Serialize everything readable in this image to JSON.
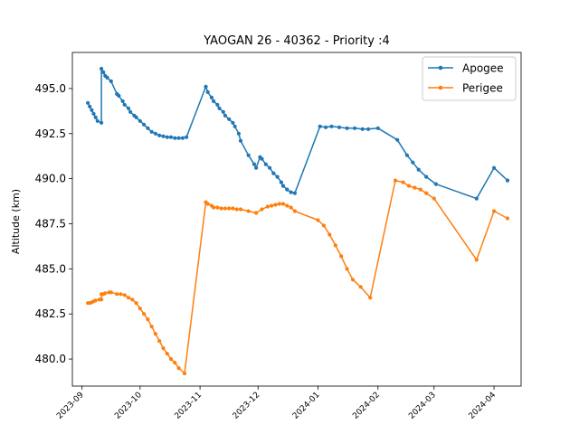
{
  "chart_data": {
    "type": "line",
    "title": "YAOGAN 26 - 40362 - Priority :4",
    "xlabel": "",
    "ylabel": "Altitude (km)",
    "xlim": [
      "2023-08-27",
      "2024-04-15"
    ],
    "ylim": [
      478.5,
      497.0
    ],
    "x_ticks": [
      "2023-09",
      "2023-10",
      "2023-11",
      "2023-12",
      "2024-01",
      "2024-02",
      "2024-03",
      "2024-04"
    ],
    "y_ticks": [
      480.0,
      482.5,
      485.0,
      487.5,
      490.0,
      492.5,
      495.0
    ],
    "y_tick_labels": [
      "480.0",
      "482.5",
      "485.0",
      "487.5",
      "490.0",
      "492.5",
      "495.0"
    ],
    "legend_position": "top-right",
    "grid": false,
    "series": [
      {
        "name": "Apogee",
        "color": "#1f77b4",
        "points": [
          [
            "2023-09-04",
            494.2
          ],
          [
            "2023-09-05",
            494.0
          ],
          [
            "2023-09-06",
            493.8
          ],
          [
            "2023-09-07",
            493.6
          ],
          [
            "2023-09-08",
            493.4
          ],
          [
            "2023-09-09",
            493.2
          ],
          [
            "2023-09-11",
            493.1
          ],
          [
            "2023-09-11",
            496.1
          ],
          [
            "2023-09-12",
            495.9
          ],
          [
            "2023-09-13",
            495.7
          ],
          [
            "2023-09-14",
            495.6
          ],
          [
            "2023-09-16",
            495.4
          ],
          [
            "2023-09-19",
            494.7
          ],
          [
            "2023-09-20",
            494.6
          ],
          [
            "2023-09-22",
            494.3
          ],
          [
            "2023-09-23",
            494.1
          ],
          [
            "2023-09-25",
            493.9
          ],
          [
            "2023-09-26",
            493.7
          ],
          [
            "2023-09-28",
            493.5
          ],
          [
            "2023-09-29",
            493.4
          ],
          [
            "2023-10-01",
            493.2
          ],
          [
            "2023-10-03",
            493.0
          ],
          [
            "2023-10-05",
            492.8
          ],
          [
            "2023-10-07",
            492.6
          ],
          [
            "2023-10-09",
            492.5
          ],
          [
            "2023-10-11",
            492.4
          ],
          [
            "2023-10-13",
            492.35
          ],
          [
            "2023-10-15",
            492.3
          ],
          [
            "2023-10-17",
            492.3
          ],
          [
            "2023-10-19",
            492.25
          ],
          [
            "2023-10-21",
            492.25
          ],
          [
            "2023-10-23",
            492.25
          ],
          [
            "2023-10-25",
            492.3
          ],
          [
            "2023-11-04",
            495.1
          ],
          [
            "2023-11-05",
            494.8
          ],
          [
            "2023-11-07",
            494.5
          ],
          [
            "2023-11-08",
            494.3
          ],
          [
            "2023-11-10",
            494.1
          ],
          [
            "2023-11-11",
            493.9
          ],
          [
            "2023-11-13",
            493.7
          ],
          [
            "2023-11-14",
            493.5
          ],
          [
            "2023-11-16",
            493.3
          ],
          [
            "2023-11-18",
            493.1
          ],
          [
            "2023-11-19",
            492.9
          ],
          [
            "2023-11-21",
            492.5
          ],
          [
            "2023-11-22",
            492.1
          ],
          [
            "2023-11-26",
            491.3
          ],
          [
            "2023-11-29",
            490.8
          ],
          [
            "2023-11-30",
            490.6
          ],
          [
            "2023-12-02",
            491.2
          ],
          [
            "2023-12-03",
            491.1
          ],
          [
            "2023-12-05",
            490.8
          ],
          [
            "2023-12-07",
            490.6
          ],
          [
            "2023-12-09",
            490.3
          ],
          [
            "2023-12-11",
            490.1
          ],
          [
            "2023-12-13",
            489.8
          ],
          [
            "2023-12-14",
            489.6
          ],
          [
            "2023-12-16",
            489.4
          ],
          [
            "2023-12-18",
            489.25
          ],
          [
            "2023-12-20",
            489.2
          ],
          [
            "2024-01-02",
            492.9
          ],
          [
            "2024-01-05",
            492.85
          ],
          [
            "2024-01-08",
            492.9
          ],
          [
            "2024-01-12",
            492.85
          ],
          [
            "2024-01-16",
            492.8
          ],
          [
            "2024-01-20",
            492.8
          ],
          [
            "2024-01-24",
            492.75
          ],
          [
            "2024-01-27",
            492.75
          ],
          [
            "2024-02-01",
            492.8
          ],
          [
            "2024-02-11",
            492.15
          ],
          [
            "2024-02-16",
            491.3
          ],
          [
            "2024-02-19",
            490.9
          ],
          [
            "2024-02-22",
            490.5
          ],
          [
            "2024-02-26",
            490.1
          ],
          [
            "2024-03-02",
            489.7
          ],
          [
            "2024-03-23",
            488.9
          ],
          [
            "2024-04-01",
            490.6
          ],
          [
            "2024-04-08",
            489.9
          ]
        ]
      },
      {
        "name": "Perigee",
        "color": "#ff7f0e",
        "points": [
          [
            "2023-09-04",
            483.1
          ],
          [
            "2023-09-05",
            483.1
          ],
          [
            "2023-09-06",
            483.15
          ],
          [
            "2023-09-07",
            483.2
          ],
          [
            "2023-09-08",
            483.25
          ],
          [
            "2023-09-10",
            483.3
          ],
          [
            "2023-09-11",
            483.3
          ],
          [
            "2023-09-11",
            483.6
          ],
          [
            "2023-09-12",
            483.6
          ],
          [
            "2023-09-13",
            483.65
          ],
          [
            "2023-09-15",
            483.7
          ],
          [
            "2023-09-16",
            483.7
          ],
          [
            "2023-09-19",
            483.6
          ],
          [
            "2023-09-21",
            483.6
          ],
          [
            "2023-09-23",
            483.55
          ],
          [
            "2023-09-25",
            483.4
          ],
          [
            "2023-09-27",
            483.3
          ],
          [
            "2023-09-29",
            483.1
          ],
          [
            "2023-10-01",
            482.8
          ],
          [
            "2023-10-03",
            482.5
          ],
          [
            "2023-10-05",
            482.2
          ],
          [
            "2023-10-07",
            481.8
          ],
          [
            "2023-10-09",
            481.4
          ],
          [
            "2023-10-11",
            481.0
          ],
          [
            "2023-10-13",
            480.6
          ],
          [
            "2023-10-15",
            480.3
          ],
          [
            "2023-10-17",
            480.0
          ],
          [
            "2023-10-19",
            479.8
          ],
          [
            "2023-10-21",
            479.5
          ],
          [
            "2023-10-24",
            479.2
          ],
          [
            "2023-11-04",
            488.7
          ],
          [
            "2023-11-05",
            488.6
          ],
          [
            "2023-11-07",
            488.5
          ],
          [
            "2023-11-08",
            488.4
          ],
          [
            "2023-11-10",
            488.4
          ],
          [
            "2023-11-12",
            488.35
          ],
          [
            "2023-11-14",
            488.35
          ],
          [
            "2023-11-16",
            488.35
          ],
          [
            "2023-11-18",
            488.35
          ],
          [
            "2023-11-20",
            488.3
          ],
          [
            "2023-11-22",
            488.3
          ],
          [
            "2023-11-26",
            488.2
          ],
          [
            "2023-11-30",
            488.1
          ],
          [
            "2023-12-03",
            488.3
          ],
          [
            "2023-12-06",
            488.45
          ],
          [
            "2023-12-08",
            488.5
          ],
          [
            "2023-12-10",
            488.55
          ],
          [
            "2023-12-12",
            488.6
          ],
          [
            "2023-12-14",
            488.6
          ],
          [
            "2023-12-16",
            488.5
          ],
          [
            "2023-12-18",
            488.4
          ],
          [
            "2023-12-20",
            488.2
          ],
          [
            "2024-01-01",
            487.7
          ],
          [
            "2024-01-04",
            487.4
          ],
          [
            "2024-01-07",
            486.9
          ],
          [
            "2024-01-10",
            486.3
          ],
          [
            "2024-01-13",
            485.7
          ],
          [
            "2024-01-16",
            485.0
          ],
          [
            "2024-01-19",
            484.4
          ],
          [
            "2024-01-23",
            484.0
          ],
          [
            "2024-01-28",
            483.4
          ],
          [
            "2024-02-10",
            489.9
          ],
          [
            "2024-02-14",
            489.8
          ],
          [
            "2024-02-17",
            489.6
          ],
          [
            "2024-02-20",
            489.5
          ],
          [
            "2024-02-23",
            489.4
          ],
          [
            "2024-02-26",
            489.2
          ],
          [
            "2024-03-01",
            488.9
          ],
          [
            "2024-03-23",
            485.5
          ],
          [
            "2024-04-01",
            488.2
          ],
          [
            "2024-04-08",
            487.8
          ]
        ]
      }
    ]
  }
}
